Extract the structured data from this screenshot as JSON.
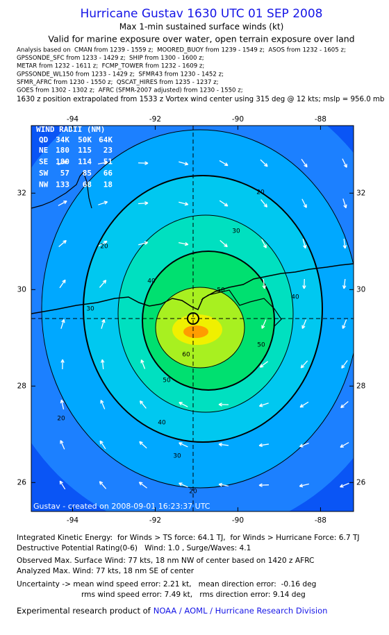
{
  "header": {
    "title": "Hurricane Gustav 1630 UTC 01 SEP 2008",
    "subtitle": "Max 1-min sustained surface winds (kt)",
    "validity": "Valid for marine exposure over water, open terrain exposure over land",
    "analysis_lines": [
      "Analysis based on  CMAN from 1239 - 1559 z;  MOORED_BUOY from 1239 - 1549 z;  ASOS from 1232 - 1605 z;",
      "GPSSONDE_SFC from 1233 - 1429 z;  SHIP from 1300 - 1600 z;",
      "METAR from 1232 - 1611 z;  FCMP_TOWER from 1232 - 1609 z;",
      "GPSSONDE_WL150 from 1233 - 1429 z;  SFMR43 from 1230 - 1452 z;",
      "SFMR_AFRC from 1230 - 1550 z;  QSCAT_HIRES from 1235 - 1237 z;",
      "GOES from 1302 - 1302 z;  AFRC (SFMR-2007 adjusted) from 1230 - 1550 z;"
    ],
    "position_note": "1630 z position extrapolated from 1533 z Vortex wind center using 315 deg @ 12 kts; mslp = 956.0 mb"
  },
  "map": {
    "xticks": [
      -94,
      -92,
      -90,
      -88
    ],
    "yticks": [
      32,
      30,
      28,
      26
    ],
    "xlim": [
      -95,
      -87.2
    ],
    "ylim": [
      25.4,
      33.4
    ],
    "contour_levels": [
      20,
      30,
      40,
      50,
      60
    ],
    "credit": "Gustav - created on 2008-09-01 16:23:37 UTC",
    "wind_radii": {
      "title": "WIND RADII (NM)",
      "columns": [
        "QD",
        "34K",
        "50K",
        "64K"
      ],
      "rows": [
        [
          "NE",
          180,
          115,
          23
        ],
        [
          "SE",
          180,
          114,
          51
        ],
        [
          "SW",
          57,
          85,
          66
        ],
        [
          "NW",
          133,
          68,
          18
        ]
      ]
    }
  },
  "footer": {
    "lines": [
      "Integrated Kinetic Energy:  for Winds > TS force: 64.1 TJ,  for Winds > Hurricane Force: 6.7 TJ",
      "Destructive Potential Rating(0-6)   Wind: 1.0 , Surge/Waves: 4.1",
      "Observed Max. Surface Wind: 77 kts, 18 nm NW of center based on 1420 z AFRC",
      "Analyzed Max. Wind: 77 kts, 18 nm SE of center",
      "Uncertainty -> mean wind speed error: 2.21 kt,   mean direction error:  -0.16 deg",
      "rms wind speed error: 7.49 kt,   rms direction error: 9.14 deg"
    ],
    "product_prefix": "Experimental research product of",
    "product_link": "NOAA / AOML / Hurricane Research Division"
  }
}
